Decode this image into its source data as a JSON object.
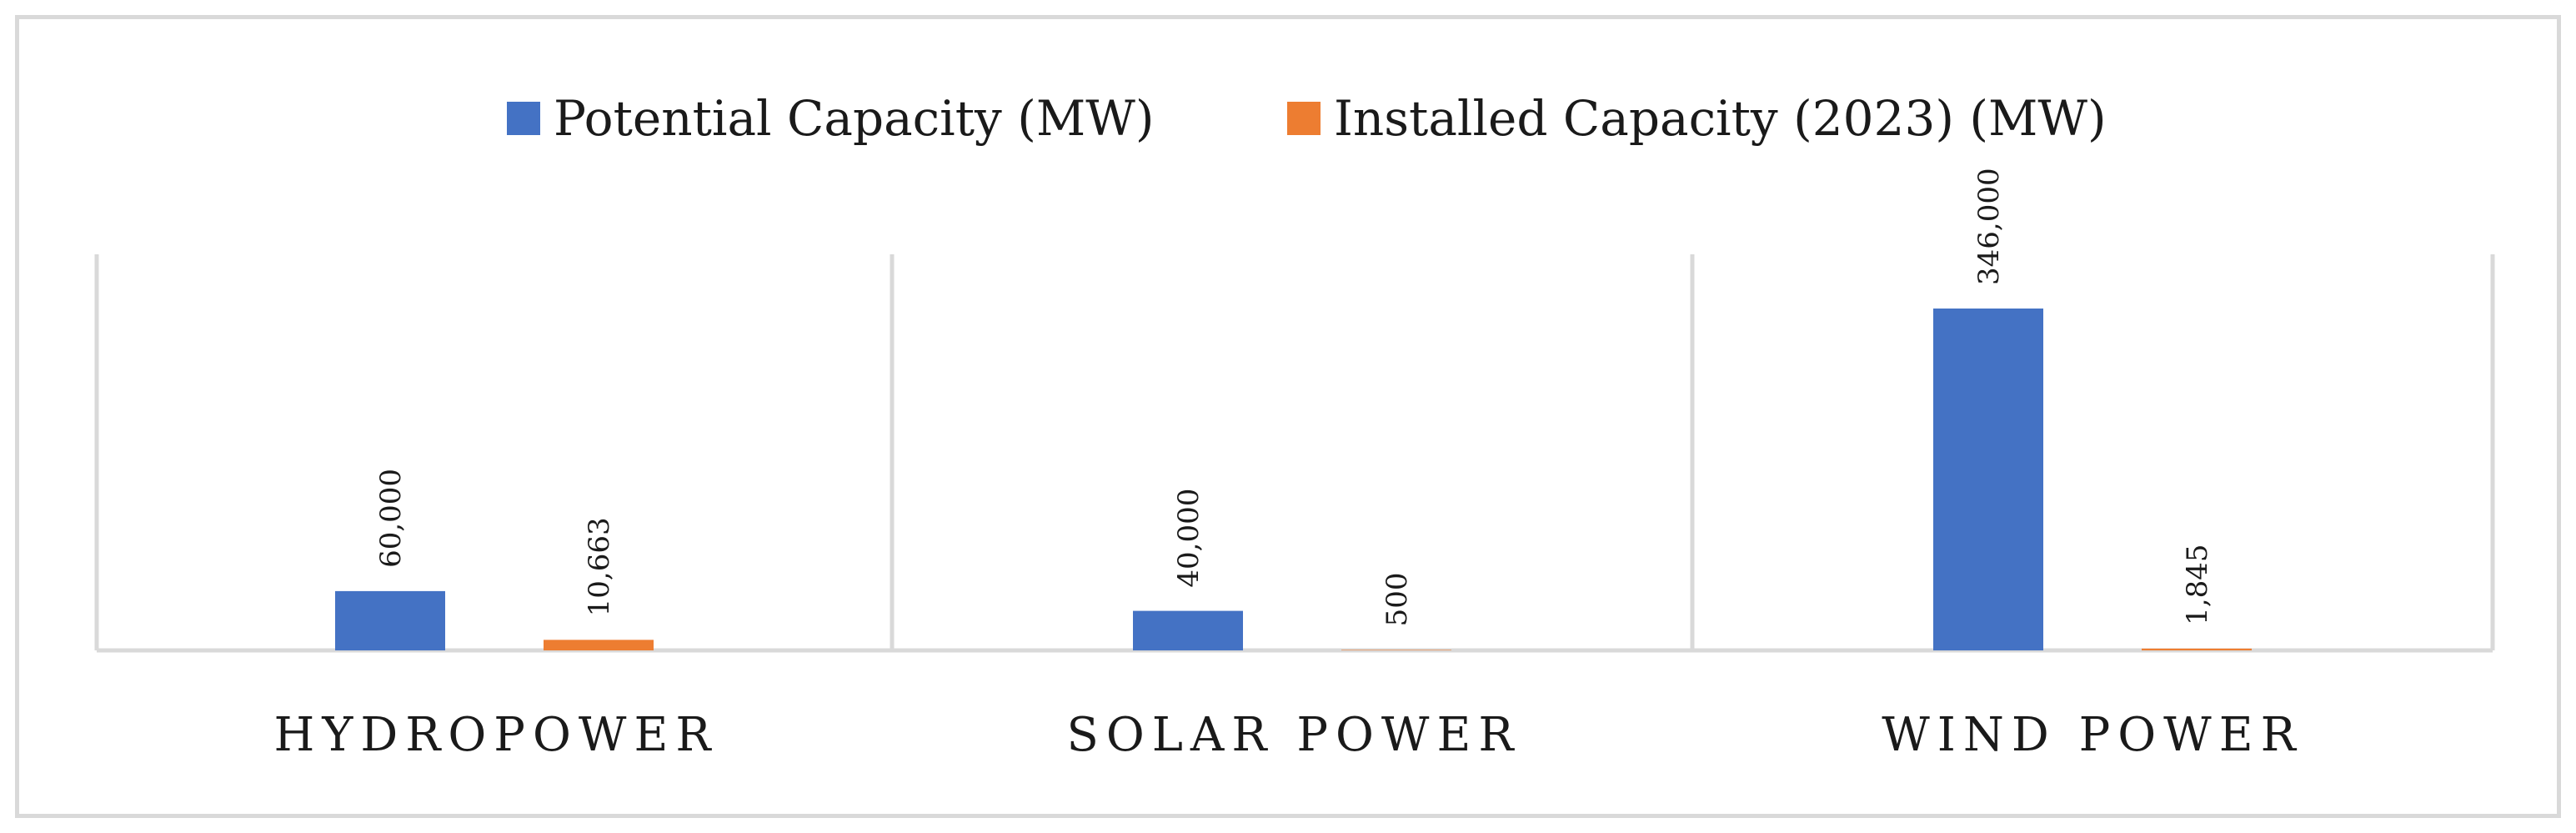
{
  "chart_data": {
    "type": "bar",
    "categories": [
      "HYDROPOWER",
      "SOLAR POWER",
      "WIND POWER"
    ],
    "series": [
      {
        "name": "Potential Capacity (MW)",
        "color": "#4472c4",
        "values": [
          60000,
          40000,
          346000
        ],
        "labels": [
          "60,000",
          "40,000",
          "346,000"
        ]
      },
      {
        "name": "Installed Capacity (2023) (MW)",
        "color": "#ed7d31",
        "values": [
          10663,
          500,
          1845
        ],
        "labels": [
          "10,663",
          "500",
          "1,845"
        ]
      }
    ],
    "ylim": [
      0,
      400000
    ],
    "legend": "top-center",
    "grid": false
  }
}
